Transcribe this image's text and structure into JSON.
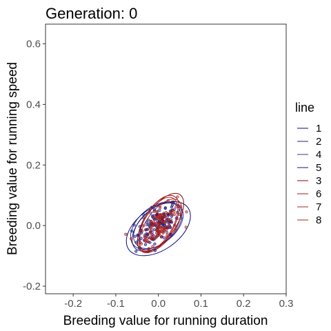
{
  "chart_data": {
    "type": "scatter",
    "title": "Generation: 0",
    "xlabel": "Breeding value for running duration",
    "ylabel": "Breeding value for running speed",
    "xlim": [
      -0.265,
      0.3
    ],
    "ylim": [
      -0.225,
      0.665
    ],
    "xticks": [
      -0.2,
      -0.1,
      0.0,
      0.1,
      0.2,
      0.3
    ],
    "xtick_labels": [
      "-0.2",
      "-0.1",
      "0.0",
      "0.1",
      "0.2",
      "0.3"
    ],
    "yticks": [
      -0.2,
      0.0,
      0.2,
      0.4,
      0.6
    ],
    "ytick_labels": [
      "-0.2",
      "0.0",
      "0.2",
      "0.4",
      "0.6"
    ],
    "grid": false,
    "legend": {
      "title": "line",
      "placement": "right",
      "entries": [
        "1",
        "2",
        "4",
        "5",
        "3",
        "6",
        "7",
        "8"
      ]
    },
    "series": [
      {
        "name": "1",
        "color": "#0a0a7a",
        "center": [
          0.0,
          0.0
        ],
        "sd": [
          0.025,
          0.035
        ],
        "ellipse": {
          "cx": 0.0,
          "cy": -0.01,
          "rx": 0.085,
          "ry": 0.07,
          "angle_deg": 35
        }
      },
      {
        "name": "2",
        "color": "#1f1f85",
        "center": [
          -0.005,
          0.005
        ],
        "sd": [
          0.025,
          0.035
        ],
        "ellipse": {
          "cx": -0.005,
          "cy": 0.0,
          "rx": 0.07,
          "ry": 0.06,
          "angle_deg": 40
        }
      },
      {
        "name": "4",
        "color": "#33338f",
        "center": [
          0.0,
          0.0
        ],
        "sd": [
          0.025,
          0.035
        ],
        "ellipse": {
          "cx": 0.0,
          "cy": 0.0,
          "rx": 0.068,
          "ry": 0.057,
          "angle_deg": 40
        }
      },
      {
        "name": "5",
        "color": "#14147d",
        "center": [
          -0.005,
          -0.005
        ],
        "sd": [
          0.025,
          0.035
        ],
        "ellipse": {
          "cx": -0.005,
          "cy": -0.005,
          "rx": 0.07,
          "ry": 0.055,
          "angle_deg": 45
        }
      },
      {
        "name": "3",
        "color": "#8b0000",
        "center": [
          0.005,
          0.01
        ],
        "sd": [
          0.022,
          0.035
        ],
        "ellipse": {
          "cx": 0.005,
          "cy": 0.01,
          "rx": 0.08,
          "ry": 0.05,
          "angle_deg": 55
        }
      },
      {
        "name": "6",
        "color": "#9c1a1a",
        "center": [
          0.0,
          0.005
        ],
        "sd": [
          0.022,
          0.035
        ],
        "ellipse": {
          "cx": 0.0,
          "cy": 0.005,
          "rx": 0.075,
          "ry": 0.05,
          "angle_deg": 60
        }
      },
      {
        "name": "7",
        "color": "#a52a2a",
        "center": [
          0.005,
          0.0
        ],
        "sd": [
          0.022,
          0.035
        ],
        "ellipse": {
          "cx": 0.005,
          "cy": 0.0,
          "rx": 0.072,
          "ry": 0.048,
          "angle_deg": 55
        }
      },
      {
        "name": "8",
        "color": "#b22222",
        "center": [
          0.0,
          0.005
        ],
        "sd": [
          0.022,
          0.035
        ],
        "ellipse": {
          "cx": 0.0,
          "cy": 0.005,
          "rx": 0.07,
          "ry": 0.047,
          "angle_deg": 60
        }
      }
    ]
  }
}
